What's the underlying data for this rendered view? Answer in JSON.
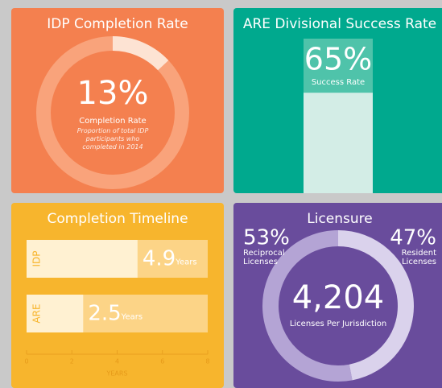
{
  "chart_data": [
    {
      "type": "donut",
      "title": "IDP Completion Rate",
      "values": [
        13
      ],
      "value_labels": [
        "13%"
      ],
      "label": "Completion Rate",
      "note": "Proportion of total IDP participants who completed in 2014",
      "color": "#fde3d3",
      "track_color": "#f9a37b",
      "background": "#f4804f"
    },
    {
      "type": "column",
      "title": "ARE Divisional Success Rate",
      "values": [
        65
      ],
      "value_labels": [
        "65%"
      ],
      "label": "Success Rate",
      "ylim": [
        0,
        100
      ],
      "color": "#d3ede6",
      "track_color": "#4fc3aa",
      "background": "#00a98e"
    },
    {
      "type": "hbar",
      "title": "Completion Timeline",
      "categories": [
        "IDP",
        "ARE"
      ],
      "values": [
        4.9,
        2.5
      ],
      "unit": "Years",
      "xlim": [
        0,
        8
      ],
      "xticks": [
        0,
        2,
        4,
        6,
        8
      ],
      "xlabel": "YEARS",
      "color": "#fff1d2",
      "track_color": "#fcd487",
      "background": "#f7b52d"
    },
    {
      "type": "pie",
      "title": "Licensure",
      "categories": [
        "Reciprocal Licenses",
        "Resident Licenses"
      ],
      "values": [
        53,
        47
      ],
      "value_labels": [
        "53%",
        "47%"
      ],
      "total": {
        "value": 4204,
        "label": "4,204"
      },
      "total_label": "Licenses Per Jurisdiction",
      "colors": [
        "#b4a4d5",
        "#dad2ec"
      ],
      "background": "#694c9c"
    }
  ]
}
